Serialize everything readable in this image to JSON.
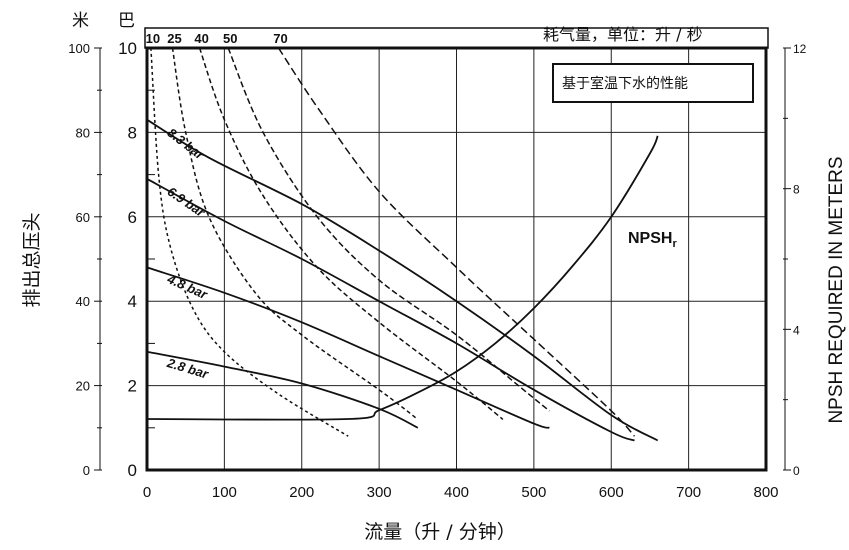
{
  "chart_data": {
    "type": "line",
    "title": "",
    "xlabel": "流量（升 / 分钟）",
    "ylabel_left": "排出总压头",
    "ylabel_right": "NPSH REQUIRED IN METERS",
    "left_units": {
      "meters": "米",
      "bar": "巴"
    },
    "air_header": "耗气量，单位：升 / 秒",
    "legend_box": "基于室温下水的性能",
    "xlim": [
      0,
      800
    ],
    "x_ticks": [
      0,
      100,
      200,
      300,
      400,
      500,
      600,
      700,
      800
    ],
    "ylim_bar": [
      0,
      10
    ],
    "bar_ticks": [
      0,
      2,
      4,
      6,
      8,
      10
    ],
    "meter_ticks": [
      0,
      20,
      40,
      60,
      80,
      100
    ],
    "npsh_lim": [
      0,
      12
    ],
    "npsh_ticks": [
      0,
      4,
      8,
      12
    ],
    "air_tick_labels": [
      "10",
      "25",
      "40",
      "50",
      "70"
    ],
    "pressure_curves": [
      {
        "name": "8.3 bar",
        "x": [
          0,
          80,
          200,
          300,
          400,
          500,
          600,
          660
        ],
        "y": [
          8.3,
          7.4,
          6.3,
          5.2,
          4.0,
          2.7,
          1.3,
          0.7
        ]
      },
      {
        "name": "6.9 bar",
        "x": [
          0,
          100,
          200,
          300,
          400,
          500,
          600,
          630
        ],
        "y": [
          6.9,
          5.9,
          5.0,
          4.0,
          3.0,
          1.9,
          0.9,
          0.7
        ]
      },
      {
        "name": "4.8 bar",
        "x": [
          0,
          100,
          200,
          300,
          400,
          500,
          520
        ],
        "y": [
          4.8,
          4.2,
          3.5,
          2.7,
          1.9,
          1.1,
          1.0
        ]
      },
      {
        "name": "2.8 bar",
        "x": [
          0,
          100,
          200,
          300,
          350
        ],
        "y": [
          2.8,
          2.45,
          2.05,
          1.45,
          1.0
        ]
      }
    ],
    "air_curves": [
      {
        "name": "10",
        "dash": "3,3",
        "x": [
          5,
          15,
          30,
          60,
          100,
          170,
          260
        ],
        "y": [
          10,
          7.0,
          5.3,
          3.8,
          2.8,
          1.8,
          0.8
        ]
      },
      {
        "name": "25",
        "dash": "4,3",
        "x": [
          33,
          50,
          80,
          140,
          200,
          300,
          350
        ],
        "y": [
          10,
          8.0,
          6.0,
          4.2,
          3.2,
          1.9,
          1.2
        ]
      },
      {
        "name": "40",
        "dash": "5,3",
        "x": [
          68,
          100,
          150,
          220,
          300,
          400,
          460
        ],
        "y": [
          10,
          8.3,
          6.5,
          4.8,
          3.5,
          2.1,
          1.2
        ]
      },
      {
        "name": "50",
        "dash": "6,3",
        "x": [
          105,
          150,
          220,
          300,
          400,
          480,
          520
        ],
        "y": [
          10,
          8.0,
          6.0,
          4.5,
          3.2,
          2.0,
          1.4
        ]
      },
      {
        "name": "70",
        "dash": "8,4",
        "x": [
          170,
          220,
          300,
          400,
          500,
          600,
          630
        ],
        "y": [
          10,
          8.6,
          6.6,
          4.8,
          3.1,
          1.4,
          0.8
        ]
      }
    ],
    "npsh_curve": {
      "name": "NPSHr",
      "x": [
        0,
        260,
        300,
        350,
        400,
        450,
        500,
        550,
        600,
        650,
        660
      ],
      "y": [
        1.45,
        1.45,
        1.7,
        2.2,
        2.8,
        3.6,
        4.6,
        5.8,
        7.2,
        9.0,
        9.5
      ]
    },
    "grid": true
  }
}
